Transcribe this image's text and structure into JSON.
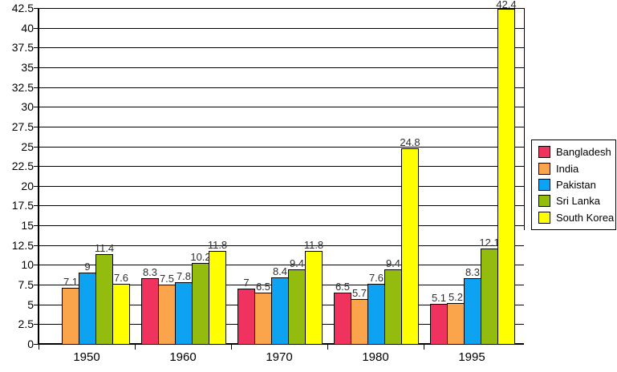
{
  "chart_data": {
    "type": "bar",
    "title": "",
    "xlabel": "",
    "ylabel": "",
    "categories": [
      "1950",
      "1960",
      "1970",
      "1980",
      "1995"
    ],
    "series": [
      {
        "name": "Bangladesh",
        "color": "#F0325F",
        "values": [
          null,
          8.3,
          7,
          6.5,
          5.1
        ],
        "labels": [
          "",
          "8.3",
          "7",
          "6.5",
          "5.1"
        ]
      },
      {
        "name": "India",
        "color": "#FAA44C",
        "values": [
          7.1,
          7.5,
          6.5,
          5.7,
          5.2
        ],
        "labels": [
          "7.1",
          "7.5",
          "6.5",
          "5.7",
          "5.2"
        ]
      },
      {
        "name": "Pakistan",
        "color": "#0DA2F2",
        "values": [
          9,
          7.8,
          8.4,
          7.6,
          8.3
        ],
        "labels": [
          "9",
          "7.8",
          "8.4",
          "7.6",
          "8.3"
        ]
      },
      {
        "name": "Sri Lanka",
        "color": "#94BC0F",
        "values": [
          11.4,
          10.2,
          9.4,
          9.4,
          12.1
        ],
        "labels": [
          "11.4",
          "10.2",
          "9.4",
          "9.4",
          "12.1"
        ]
      },
      {
        "name": "South Korea",
        "color": "#FFFF00",
        "values": [
          7.6,
          11.8,
          11.8,
          24.8,
          42.4
        ],
        "labels": [
          "7.6",
          "11.8",
          "11.8",
          "24.8",
          "42.4"
        ]
      }
    ],
    "ylim": [
      0,
      42.5
    ],
    "ytick_step": 2.5,
    "ytick_labels": [
      "0",
      "2.5",
      "5",
      "7.5",
      "10",
      "12.5",
      "15",
      "17.5",
      "20",
      "22.5",
      "25",
      "27.5",
      "30",
      "32.5",
      "35",
      "37.5",
      "40",
      "42.5"
    ],
    "grid": true,
    "legend_position": "right",
    "axis_color": "#000000",
    "data_label_color": "#2e2e2e",
    "background": "#FFFFFF"
  }
}
